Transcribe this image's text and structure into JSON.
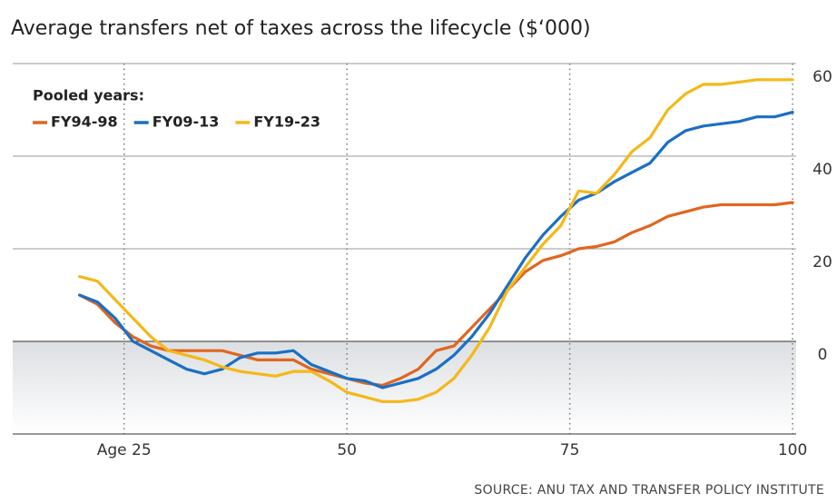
{
  "chart_data": {
    "type": "line",
    "title": "Average transfers net of taxes across the lifecycle ($‘000)",
    "source": "SOURCE: ANU TAX AND TRANSFER POLICY INSTITUTE",
    "legend_title": "Pooled years:",
    "legend": "upper left",
    "x": [
      20,
      22,
      24,
      26,
      28,
      30,
      32,
      34,
      36,
      38,
      40,
      42,
      44,
      46,
      48,
      50,
      52,
      54,
      56,
      58,
      60,
      62,
      64,
      66,
      68,
      70,
      72,
      74,
      76,
      78,
      80,
      82,
      84,
      86,
      88,
      90,
      92,
      94,
      96,
      98,
      100
    ],
    "series": [
      {
        "name": "FY94-98",
        "color": "#e0661f",
        "values": [
          10,
          8,
          4,
          1,
          -1,
          -2,
          -2,
          -2,
          -2,
          -3,
          -4,
          -4,
          -4,
          -6,
          -7,
          -8,
          -9,
          -9.5,
          -8,
          -6,
          -2,
          -1,
          3,
          7,
          11,
          15,
          17.5,
          18.5,
          20,
          20.5,
          21.5,
          23.5,
          25,
          27,
          28,
          29,
          29.5,
          29.5,
          29.5,
          29.5,
          30
        ]
      },
      {
        "name": "FY09-13",
        "color": "#1a6fc4",
        "values": [
          10,
          8.5,
          5,
          0,
          -2,
          -4,
          -6,
          -7,
          -6,
          -3.5,
          -2.5,
          -2.5,
          -2,
          -5,
          -6.5,
          -8,
          -8.5,
          -10,
          -9,
          -8,
          -6,
          -3,
          1,
          6,
          12,
          18,
          23,
          27,
          30.5,
          32,
          34.5,
          36.5,
          38.5,
          43,
          45.5,
          46.5,
          47,
          47.5,
          48.5,
          48.5,
          49.5
        ]
      },
      {
        "name": "FY19-23",
        "color": "#f5b818",
        "values": [
          14,
          13,
          9,
          5,
          1,
          -2,
          -3,
          -4,
          -5.5,
          -6.5,
          -7,
          -7.5,
          -6.5,
          -6.5,
          -8.5,
          -11,
          -12,
          -13,
          -13,
          -12.5,
          -11,
          -8,
          -3,
          3,
          11,
          16,
          21,
          25,
          32.5,
          32,
          36,
          41,
          44,
          50,
          53.5,
          55.5,
          55.5,
          56,
          56.5,
          56.5,
          56.5
        ]
      }
    ],
    "xlim": [
      12.5,
      100.4
    ],
    "xticks": [
      {
        "value": 25,
        "label": "Age 25"
      },
      50,
      75,
      100
    ],
    "ylim": [
      -20,
      60
    ],
    "yticks": [
      0,
      20,
      40,
      60
    ],
    "grid": true
  }
}
